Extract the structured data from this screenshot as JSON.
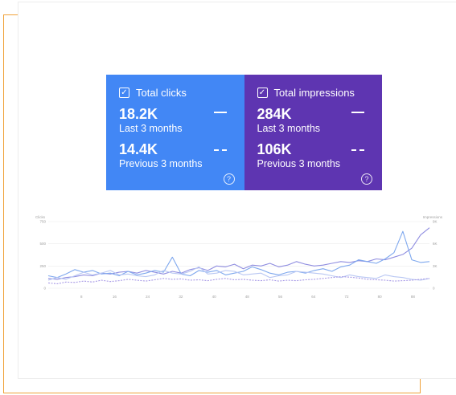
{
  "metrics": {
    "clicks": {
      "label": "Total clicks",
      "current_value": "18.2K",
      "current_period": "Last 3 months",
      "previous_value": "14.4K",
      "previous_period": "Previous 3 months",
      "color": "#4287f5"
    },
    "impressions": {
      "label": "Total impressions",
      "current_value": "284K",
      "current_period": "Last 3 months",
      "previous_value": "106K",
      "previous_period": "Previous 3 months",
      "color": "#5e35b1"
    },
    "help_glyph": "?"
  },
  "chart_data": {
    "type": "line",
    "ylabel_left": "Clicks",
    "ylabel_right": "Impressions",
    "y_ticks_left": [
      "0",
      "250",
      "500",
      "750"
    ],
    "y_ticks_right": [
      "0",
      "3K",
      "6K",
      "9K"
    ],
    "ylim": [
      0,
      750
    ],
    "x_ticks": [
      "8",
      "16",
      "24",
      "32",
      "40",
      "48",
      "56",
      "64",
      "72",
      "80",
      "88"
    ],
    "series": [
      {
        "color": "#8f8de0",
        "style": "solid",
        "values": [
          110,
          100,
          120,
          130,
          150,
          140,
          170,
          160,
          180,
          190,
          170,
          200,
          180,
          160,
          190,
          170,
          210,
          230,
          200,
          250,
          240,
          270,
          220,
          260,
          250,
          280,
          240,
          260,
          300,
          270,
          250,
          260,
          280,
          300,
          290,
          310,
          300,
          330,
          320,
          350,
          380,
          450,
          600,
          680
        ]
      },
      {
        "color": "#7fa8ee",
        "style": "solid",
        "values": [
          140,
          120,
          160,
          210,
          180,
          200,
          160,
          170,
          140,
          190,
          150,
          170,
          200,
          180,
          350,
          160,
          140,
          200,
          180,
          200,
          150,
          170,
          190,
          240,
          210,
          170,
          150,
          180,
          190,
          170,
          200,
          220,
          190,
          240,
          260,
          320,
          300,
          280,
          330,
          400,
          640,
          320,
          290,
          300
        ]
      },
      {
        "color": "#b9c7f3",
        "style": "solid",
        "values": [
          90,
          120,
          100,
          140,
          180,
          150,
          170,
          200,
          150,
          160,
          140,
          130,
          150,
          200,
          170,
          160,
          190,
          240,
          160,
          170,
          200,
          190,
          150,
          160,
          170,
          120,
          140,
          150,
          190,
          180,
          170,
          160,
          140,
          120,
          150,
          130,
          120,
          110,
          150,
          130,
          120,
          100,
          90,
          110
        ]
      },
      {
        "color": "#a89ae6",
        "style": "dashed",
        "values": [
          60,
          50,
          70,
          65,
          80,
          70,
          90,
          75,
          85,
          100,
          90,
          80,
          95,
          110,
          100,
          105,
          90,
          95,
          85,
          100,
          110,
          95,
          100,
          90,
          85,
          95,
          80,
          90,
          85,
          95,
          100,
          110,
          120,
          130,
          125,
          115,
          100,
          95,
          90,
          80,
          85,
          90,
          100,
          110
        ]
      }
    ]
  }
}
